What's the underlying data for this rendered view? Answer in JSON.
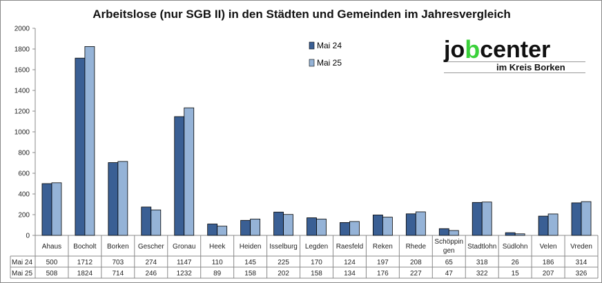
{
  "chart_data": {
    "type": "bar",
    "title": "Arbeitslose (nur SGB II) in den Städten und Gemeinden im Jahresvergleich",
    "categories": [
      "Ahaus",
      "Bocholt",
      "Borken",
      "Gescher",
      "Gronau",
      "Heek",
      "Heiden",
      "Isselburg",
      "Legden",
      "Raesfeld",
      "Reken",
      "Rhede",
      "Schöppin gen",
      "Stadtlohn",
      "Südlohn",
      "Velen",
      "Vreden"
    ],
    "series": [
      {
        "name": "Mai 24",
        "color": "#3a5f94",
        "values": [
          500,
          1712,
          703,
          274,
          1147,
          110,
          145,
          225,
          170,
          124,
          197,
          208,
          65,
          318,
          26,
          186,
          314
        ]
      },
      {
        "name": "Mai 25",
        "color": "#95b3d7",
        "values": [
          508,
          1824,
          714,
          246,
          1232,
          89,
          158,
          202,
          158,
          134,
          176,
          227,
          47,
          322,
          15,
          207,
          326
        ]
      }
    ],
    "ylim": [
      0,
      2000
    ],
    "yticks": [
      0,
      200,
      400,
      600,
      800,
      1000,
      1200,
      1400,
      1600,
      1800,
      2000
    ],
    "grid": false,
    "legend": "top-center",
    "data_table": true
  },
  "logo": {
    "main_left": "jo",
    "main_b": "b",
    "main_right": "center",
    "sub": "im Kreis Borken"
  }
}
